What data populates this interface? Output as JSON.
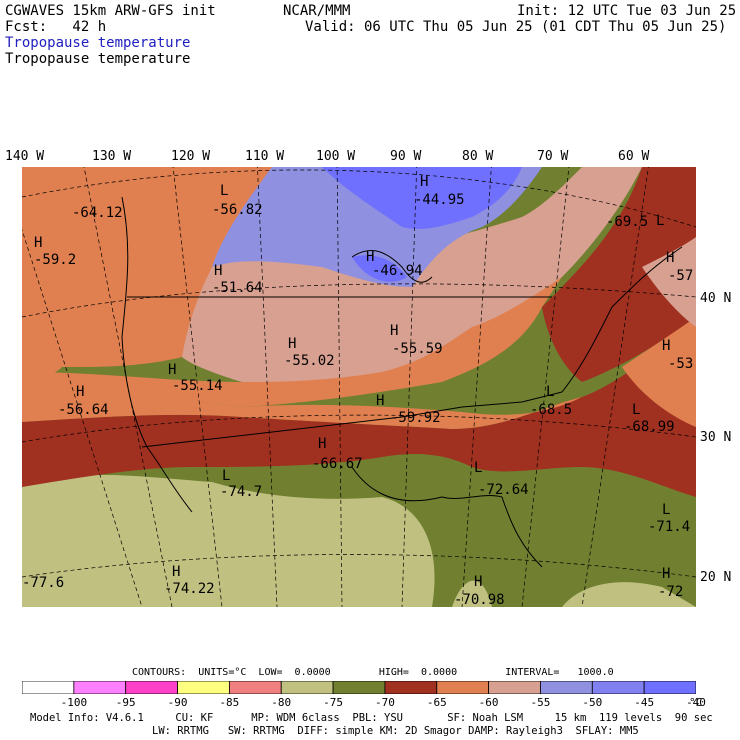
{
  "header": {
    "model": "CGWAVES 15km ARW-GFS init",
    "org": "NCAR/MMM",
    "init": "Init: 12 UTC Tue 03 Jun 25",
    "fcst": "Fcst:   42 h",
    "valid": "Valid: 06 UTC Thu 05 Jun 25 (01 CDT Thu 05 Jun 25)",
    "field_title_1": "Tropopause temperature",
    "field_title_2": "Tropopause temperature"
  },
  "longitude_labels": [
    "140 W",
    "130 W",
    "120 W",
    "110 W",
    "100 W",
    "90 W",
    "80 W",
    "70 W",
    "60 W"
  ],
  "latitude_labels": [
    "40 N",
    "30 N",
    "20 N"
  ],
  "map_labels": [
    {
      "t": "L"
    },
    {
      "t": "-64.12"
    },
    {
      "t": "L"
    },
    {
      "t": "-56.82"
    },
    {
      "t": "H"
    },
    {
      "t": "-44.95"
    },
    {
      "t": "H"
    },
    {
      "t": "-59.2"
    },
    {
      "t": "H"
    },
    {
      "t": "-51.64"
    },
    {
      "t": "H"
    },
    {
      "t": "-46.94"
    },
    {
      "t": "L"
    },
    {
      "t": "-69.5"
    },
    {
      "t": "H"
    },
    {
      "t": "-57"
    },
    {
      "t": "H"
    },
    {
      "t": "-55.02"
    },
    {
      "t": "H"
    },
    {
      "t": "-55.59"
    },
    {
      "t": "H"
    },
    {
      "t": "-53"
    },
    {
      "t": "H"
    },
    {
      "t": "-55.14"
    },
    {
      "t": "H"
    },
    {
      "t": "-56.64"
    },
    {
      "t": "H"
    },
    {
      "t": "-59.92"
    },
    {
      "t": "L"
    },
    {
      "t": "-68.5"
    },
    {
      "t": "L"
    },
    {
      "t": "-68.99"
    },
    {
      "t": "H"
    },
    {
      "t": "-66.67"
    },
    {
      "t": "L"
    },
    {
      "t": "-74.7"
    },
    {
      "t": "L"
    },
    {
      "t": "-72.64"
    },
    {
      "t": "L"
    },
    {
      "t": "-71.4"
    },
    {
      "t": "-77.6"
    },
    {
      "t": "H"
    },
    {
      "t": "-74.22"
    },
    {
      "t": "H"
    },
    {
      "t": "-70.98"
    },
    {
      "t": "H"
    },
    {
      "t": "-72"
    }
  ],
  "contours": {
    "line": "CONTOURS:  UNITS=°C  LOW=  0.0000        HIGH=  0.0000        INTERVAL=   1000.0"
  },
  "legend": {
    "colors": [
      "#ffffff",
      "#ff80ff",
      "#ff40c8",
      "#ffff80",
      "#f08080",
      "#c0c080",
      "#708030",
      "#a03020",
      "#e08050",
      "#d8a090",
      "#9090e0",
      "#8080f0",
      "#7070ff"
    ],
    "ticks": [
      "-100",
      "-95",
      "-90",
      "-85",
      "-80",
      "-75",
      "-70",
      "-65",
      "-60",
      "-55",
      "-50",
      "-45",
      "-40"
    ],
    "unit": "°C"
  },
  "footer": {
    "line1": "Model Info: V4.6.1     CU: KF      MP: WDM 6class  PBL: YSU       SF: Noah LSM     15 km  119 levels  90 sec",
    "line2": "LW: RRTMG   SW: RRTMG  DIFF: simple KM: 2D Smagor DAMP: Rayleigh3  SFLAY: MM5"
  }
}
